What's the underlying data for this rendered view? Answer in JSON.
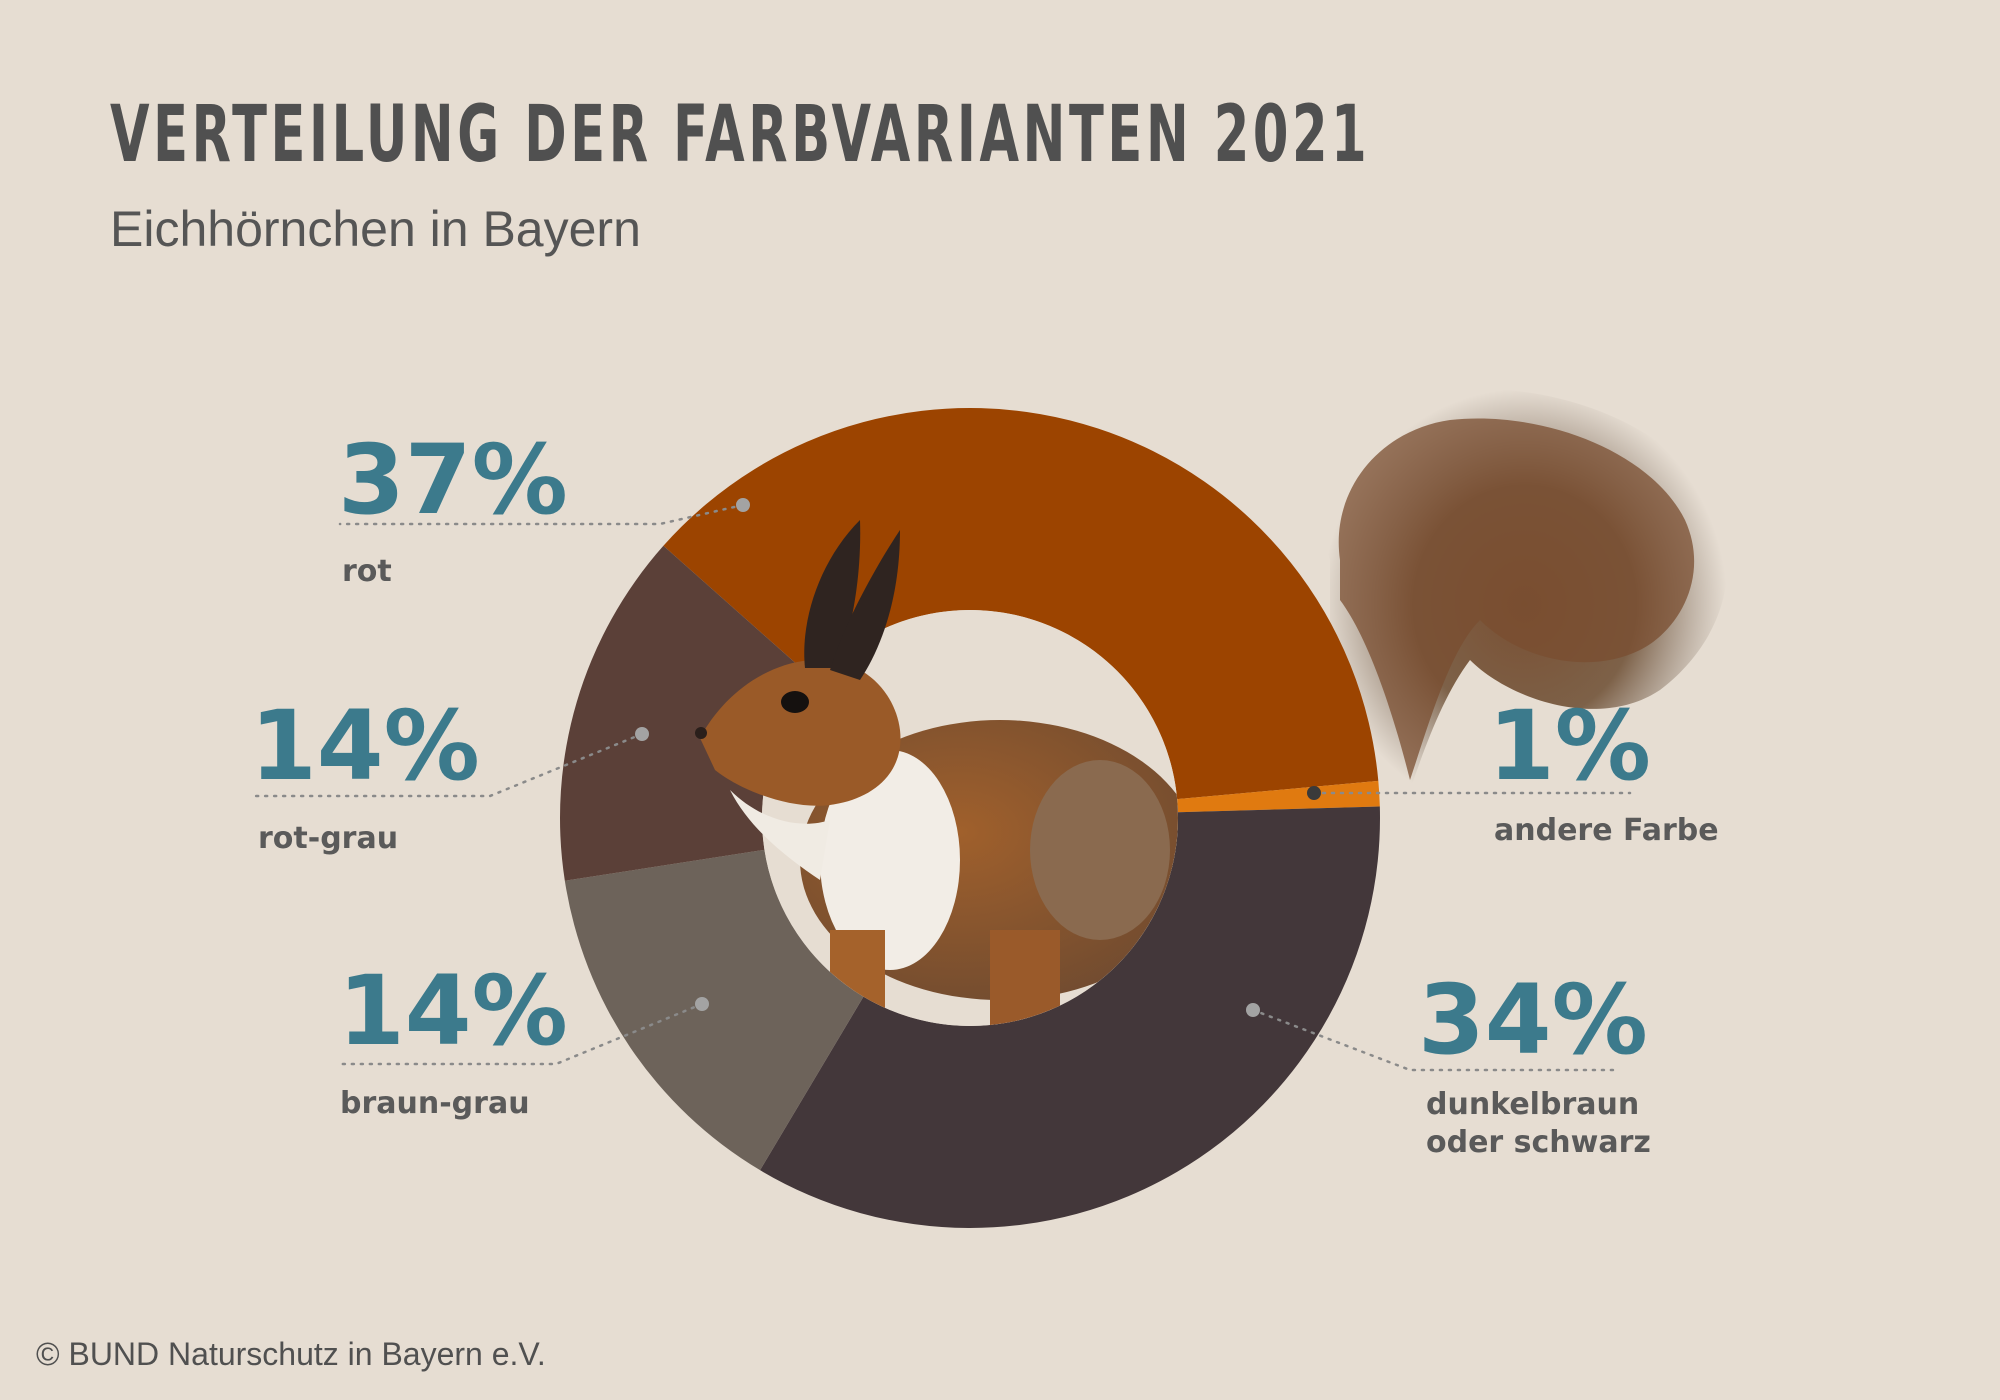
{
  "title": "VERTEILUNG DER FARBVARIANTEN 2021",
  "subtitle": "Eichhörnchen in Bayern",
  "copyright": "© BUND Naturschutz in Bayern e.V.",
  "colors": {
    "background": "#e6ddd2",
    "percent_text": "#3c7a8c",
    "rot": "#9c4400",
    "andere_farbe": "#e07a10",
    "dunkelbraun_oder_schwarz": "#43373a",
    "braun_grau": "#6d635a",
    "rot_grau": "#5b4038"
  },
  "chart_data": {
    "type": "pie",
    "donut": true,
    "center_image": "red-squirrel",
    "slices": [
      {
        "label": "rot",
        "percent_label": "37%",
        "value": 37,
        "color": "#9c4400"
      },
      {
        "label": "andere Farbe",
        "percent_label": "1%",
        "value": 1,
        "color": "#e07a10"
      },
      {
        "label": "dunkelbraun oder schwarz",
        "percent_label": "34%",
        "value": 34,
        "color": "#43373a"
      },
      {
        "label": "braun-grau",
        "percent_label": "14%",
        "value": 14,
        "color": "#6d635a"
      },
      {
        "label": "rot-grau",
        "percent_label": "14%",
        "value": 14,
        "color": "#5b4038"
      }
    ]
  },
  "labels": {
    "rot": {
      "pct": "37%",
      "name": "rot"
    },
    "rot_grau": {
      "pct": "14%",
      "name": "rot-grau"
    },
    "braun_grau": {
      "pct": "14%",
      "name": "braun-grau"
    },
    "andere": {
      "pct": "1%",
      "name": "andere Farbe"
    },
    "dunkel": {
      "pct": "34%",
      "name_line1": "dunkelbraun",
      "name_line2": "oder schwarz"
    }
  }
}
